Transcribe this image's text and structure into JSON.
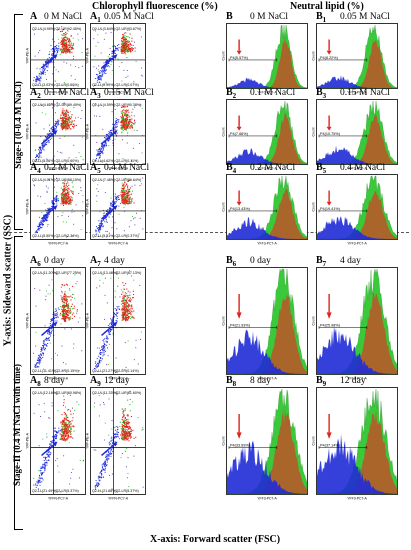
{
  "headers": {
    "left": "Chlorophyll fluorescence (%)",
    "right": "Neutral lipid (%)"
  },
  "axes": {
    "y": "Y-axis: Sideward scatter (SSC)",
    "x": "X-axis: Forward scatter (FSC)"
  },
  "stages": {
    "stage1": "Stage-I (0-0.4 M NaCl)",
    "stage2": "Stage-II (0.4 M NaCl with time)"
  },
  "colors": {
    "blue": "#1f2bd6",
    "red": "#e2231a",
    "green": "#3ac93a",
    "brown": "#b0602a"
  },
  "scatter": [
    {
      "id": "A",
      "sub": "",
      "cond": "0 M NaCl",
      "q": [
        "Q2-UL(4.95%)",
        "Q2-UR(92.45%)",
        "Q2-LL(3.03%)",
        "Q2-LR(0.60%)"
      ]
    },
    {
      "id": "A",
      "sub": "1",
      "cond": "0.05 M NaCl",
      "q": [
        "Q2-UL(3.64%)",
        "Q2-UR(93.67%)",
        "Q2-LL(0.99%)",
        "Q2-LR(0.07%)"
      ]
    },
    {
      "id": "A",
      "sub": "2",
      "cond": "0.1 M NaCl",
      "q": [
        "Q2-UL(4.85%)",
        "Q2-UR(89.49%)",
        "Q2-LL(5.06%)",
        "Q2-LR(0.60%)"
      ]
    },
    {
      "id": "A",
      "sub": "3",
      "cond": "0.15 M NaCl",
      "q": [
        "Q2-UL(4.59%)",
        "Q2-UR(90.38%)",
        "Q2-LL(4.62%)",
        "Q2-LR(0.11%)"
      ]
    },
    {
      "id": "A",
      "sub": "4",
      "cond": "0.2 M NaCl",
      "q": [
        "Q2-UL(4.01%)",
        "Q2-UR(88.15%)",
        "Q2-LL(5.50%)",
        "Q2-LR(2.34%)"
      ]
    },
    {
      "id": "A",
      "sub": "5",
      "cond": "0.4 M NaCl",
      "q": [
        "Q2-UL(7.46%)",
        "Q2-UR(86.64%)",
        "Q2-LL(5.51%)",
        "Q2-LR(0.37%)"
      ]
    },
    {
      "id": "A",
      "sub": "6",
      "cond": "0 day",
      "q": [
        "Q2-UL(11.20%)",
        "Q2-UR(77.25%)",
        "Q2-LL(11.41%)",
        "Q2-LR(0.15%)"
      ]
    },
    {
      "id": "A",
      "sub": "7",
      "cond": "4 day",
      "q": [
        "Q2-UL(13.48%)",
        "Q2-UR(67.13%)",
        "Q2-LL(21.27%)",
        "Q2-LR(0.14%)"
      ]
    },
    {
      "id": "A",
      "sub": "8",
      "cond": "8 day",
      "q": [
        "Q2-UL(12.16%)",
        "Q2-UR(60.98%)",
        "Q2-LL(21.49%)",
        "Q2-LR(5.37%)"
      ]
    },
    {
      "id": "A",
      "sub": "9",
      "cond": "12 day",
      "q": [
        "Q2-UL(11.33%)",
        "Q2-UR(61.60%)",
        "Q2-LL(21.68%)",
        "Q2-LR(5.37%)"
      ]
    }
  ],
  "histo": [
    {
      "id": "B",
      "sub": "",
      "cond": "0 M NaCl",
      "gate": "P4(5.57%)"
    },
    {
      "id": "B",
      "sub": "1",
      "cond": "0.05 M NaCl",
      "gate": "P4(8.22%)"
    },
    {
      "id": "B",
      "sub": "2",
      "cond": "0.1 M NaCl",
      "gate": "P4(7.66%)"
    },
    {
      "id": "B",
      "sub": "3",
      "cond": "0.15 M NaCl",
      "gate": "P4(10.75%)"
    },
    {
      "id": "B",
      "sub": "4",
      "cond": "0.2 M NaCl",
      "gate": "P4(13.43%)"
    },
    {
      "id": "B",
      "sub": "5",
      "cond": "0.4 M NaCl",
      "gate": "P4(19.41%)"
    },
    {
      "id": "B",
      "sub": "6",
      "cond": "0 day",
      "gate": "P4(21.93%)"
    },
    {
      "id": "B",
      "sub": "7",
      "cond": "4 day",
      "gate": "P4(25.98%)"
    },
    {
      "id": "B",
      "sub": "8",
      "cond": "8 day",
      "gate": "P4(33.69%)"
    },
    {
      "id": "B",
      "sub": "9",
      "cond": "12 day",
      "gate": "P4(37.14%)"
    }
  ],
  "scatter_axes": {
    "y": "YFP-PE-A",
    "x": "YFFN-PC7-A"
  },
  "histo_axes": {
    "y": "Count",
    "x": "YFF3-PC7-A"
  }
}
